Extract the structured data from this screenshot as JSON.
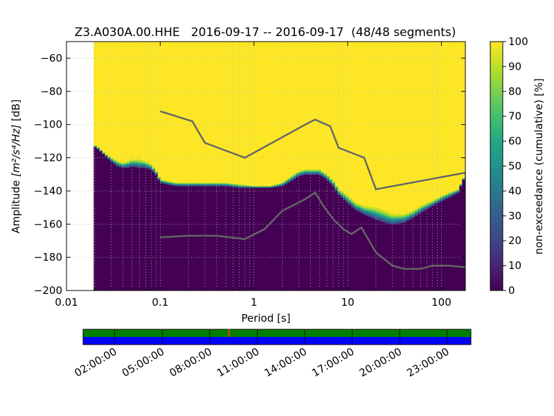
{
  "chart_data": {
    "type": "heatmap",
    "title": "Z3.A030A.00.HHE   2016-09-17 -- 2016-09-17  (48/48 segments)",
    "xlabel": "Period [s]",
    "ylabel": "Amplitude [m²/s⁴/Hz] [dB]",
    "ylabel_main": "Amplitude ",
    "ylabel_units": "[m²/s⁴/Hz]",
    "ylabel_db": " [dB]",
    "x_scale": "log",
    "xlim": [
      0.01,
      180
    ],
    "ylim": [
      -200,
      -50
    ],
    "x_ticks": [
      0.01,
      0.1,
      1,
      10,
      100
    ],
    "x_tick_labels": [
      "0.01",
      "0.1",
      "1",
      "10",
      "100"
    ],
    "y_ticks": [
      -60,
      -80,
      -100,
      -120,
      -140,
      -160,
      -180,
      -200
    ],
    "y_tick_labels": [
      "−60",
      "−80",
      "−100",
      "−120",
      "−140",
      "−160",
      "−180",
      "−200"
    ],
    "grid": true,
    "data_period_min": 0.0195,
    "colorbar": {
      "label": "non-exceedance (cumulative) [%]",
      "ticks": [
        0,
        10,
        20,
        30,
        40,
        50,
        60,
        70,
        80,
        90,
        100
      ],
      "tick_labels": [
        "0",
        "10",
        "20",
        "30",
        "40",
        "50",
        "60",
        "70",
        "80",
        "90",
        "100"
      ],
      "colormap": "viridis"
    },
    "transition_band": {
      "period": [
        0.0195,
        0.022,
        0.025,
        0.03,
        0.035,
        0.04,
        0.045,
        0.05,
        0.06,
        0.07,
        0.08,
        0.09,
        0.1,
        0.12,
        0.15,
        0.2,
        0.3,
        0.5,
        0.7,
        1.0,
        1.5,
        2.0,
        2.5,
        3.0,
        3.5,
        4.0,
        5.0,
        6.0,
        7.0,
        8.0,
        10,
        12,
        15,
        20,
        25,
        30,
        40,
        50,
        60,
        80,
        100,
        120,
        150,
        170,
        180
      ],
      "lower_db": [
        -113,
        -115,
        -118,
        -122,
        -125,
        -126,
        -126,
        -125,
        -126,
        -126,
        -127,
        -130,
        -135,
        -136,
        -137,
        -137,
        -137,
        -137,
        -138,
        -138,
        -138,
        -137,
        -134,
        -131,
        -130,
        -130,
        -130,
        -133,
        -137,
        -142,
        -147,
        -151,
        -154,
        -157,
        -159,
        -160,
        -159,
        -156,
        -153,
        -149,
        -146,
        -144,
        -141,
        -134,
        -130
      ],
      "upper_db": [
        -112,
        -114,
        -117,
        -120,
        -122,
        -123,
        -122,
        -121,
        -121,
        -122,
        -124,
        -128,
        -133,
        -134,
        -135,
        -135,
        -135,
        -135,
        -136,
        -137,
        -137,
        -135,
        -131,
        -128,
        -127,
        -127,
        -127,
        -130,
        -134,
        -139,
        -143,
        -147,
        -149,
        -150,
        -152,
        -154,
        -154,
        -152,
        -149,
        -146,
        -143,
        -141,
        -139,
        -133,
        -129
      ]
    },
    "series": [
      {
        "x": [
          0.1,
          0.22,
          0.3,
          0.8,
          3.8,
          4.5,
          6.5,
          8.0,
          15,
          20,
          180
        ],
        "y": [
          -92,
          -98,
          -111,
          -120,
          -99,
          -97,
          -101,
          -114,
          -120,
          -139,
          -129
        ]
      },
      {
        "x": [
          0.1,
          0.2,
          0.4,
          0.8,
          1.3,
          2.0,
          3.5,
          4.5,
          5.5,
          7.0,
          9.0,
          11,
          14,
          20,
          30,
          40,
          60,
          80,
          120,
          180
        ],
        "y": [
          -168,
          -167,
          -167,
          -169,
          -163,
          -152,
          -145,
          -141,
          -149,
          -157,
          -163,
          -166,
          -162,
          -177,
          -185,
          -187,
          -187,
          -185,
          -185,
          -186
        ]
      }
    ]
  },
  "timeline": {
    "labels": [
      "02:00:00",
      "05:00:00",
      "08:00:00",
      "11:00:00",
      "14:00:00",
      "17:00:00",
      "20:00:00",
      "23:00:00"
    ],
    "label_hours": [
      2,
      5,
      8,
      11,
      14,
      17,
      20,
      23
    ],
    "start_hour": 0,
    "end_hour": 24.5,
    "data_color": "#008000",
    "psd_color": "#0000ff",
    "gap_marker_hour": 9.2,
    "gap_marker_color": "#b05010"
  },
  "colors": {
    "high": "#fde725",
    "low": "#440154",
    "reference_line": "#666666"
  }
}
